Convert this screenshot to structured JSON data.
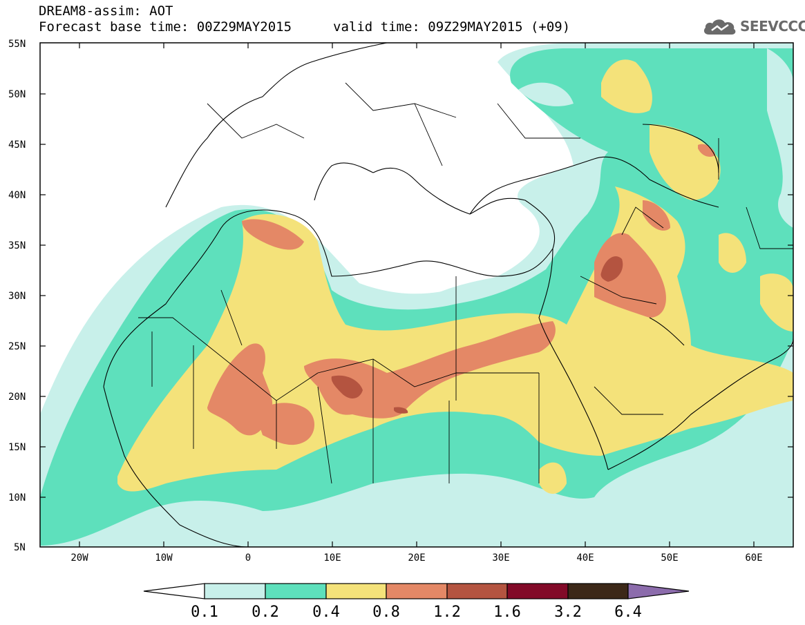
{
  "header": {
    "line1": "DREAM8-assim: AOT",
    "line2": "Forecast base time: 00Z29MAY2015",
    "valid_time": "valid time: 09Z29MAY2015 (+09)",
    "logo_text": "SEEVCCC"
  },
  "axes": {
    "lat_labels": [
      "55N",
      "50N",
      "45N",
      "40N",
      "35N",
      "30N",
      "25N",
      "20N",
      "15N",
      "10N",
      "5N"
    ],
    "lon_labels": [
      "20W",
      "10W",
      "0",
      "10E",
      "20E",
      "30E",
      "40E",
      "50E",
      "60E"
    ]
  },
  "colorbar": {
    "labels": [
      "0.1",
      "0.2",
      "0.4",
      "0.8",
      "1.2",
      "1.6",
      "3.2",
      "6.4"
    ],
    "colors": [
      "#c8f0ea",
      "#5ee0bc",
      "#f4e27a",
      "#e48866",
      "#b45440",
      "#820a28",
      "#3c2818",
      "#8c6cac"
    ]
  },
  "map_colors": {
    "land_outline": "#000000",
    "level_0_1": "#c8f0ea",
    "level_0_2": "#5ee0bc",
    "level_0_4": "#f4e27a",
    "level_0_8": "#e48866",
    "level_1_2": "#b45440"
  }
}
